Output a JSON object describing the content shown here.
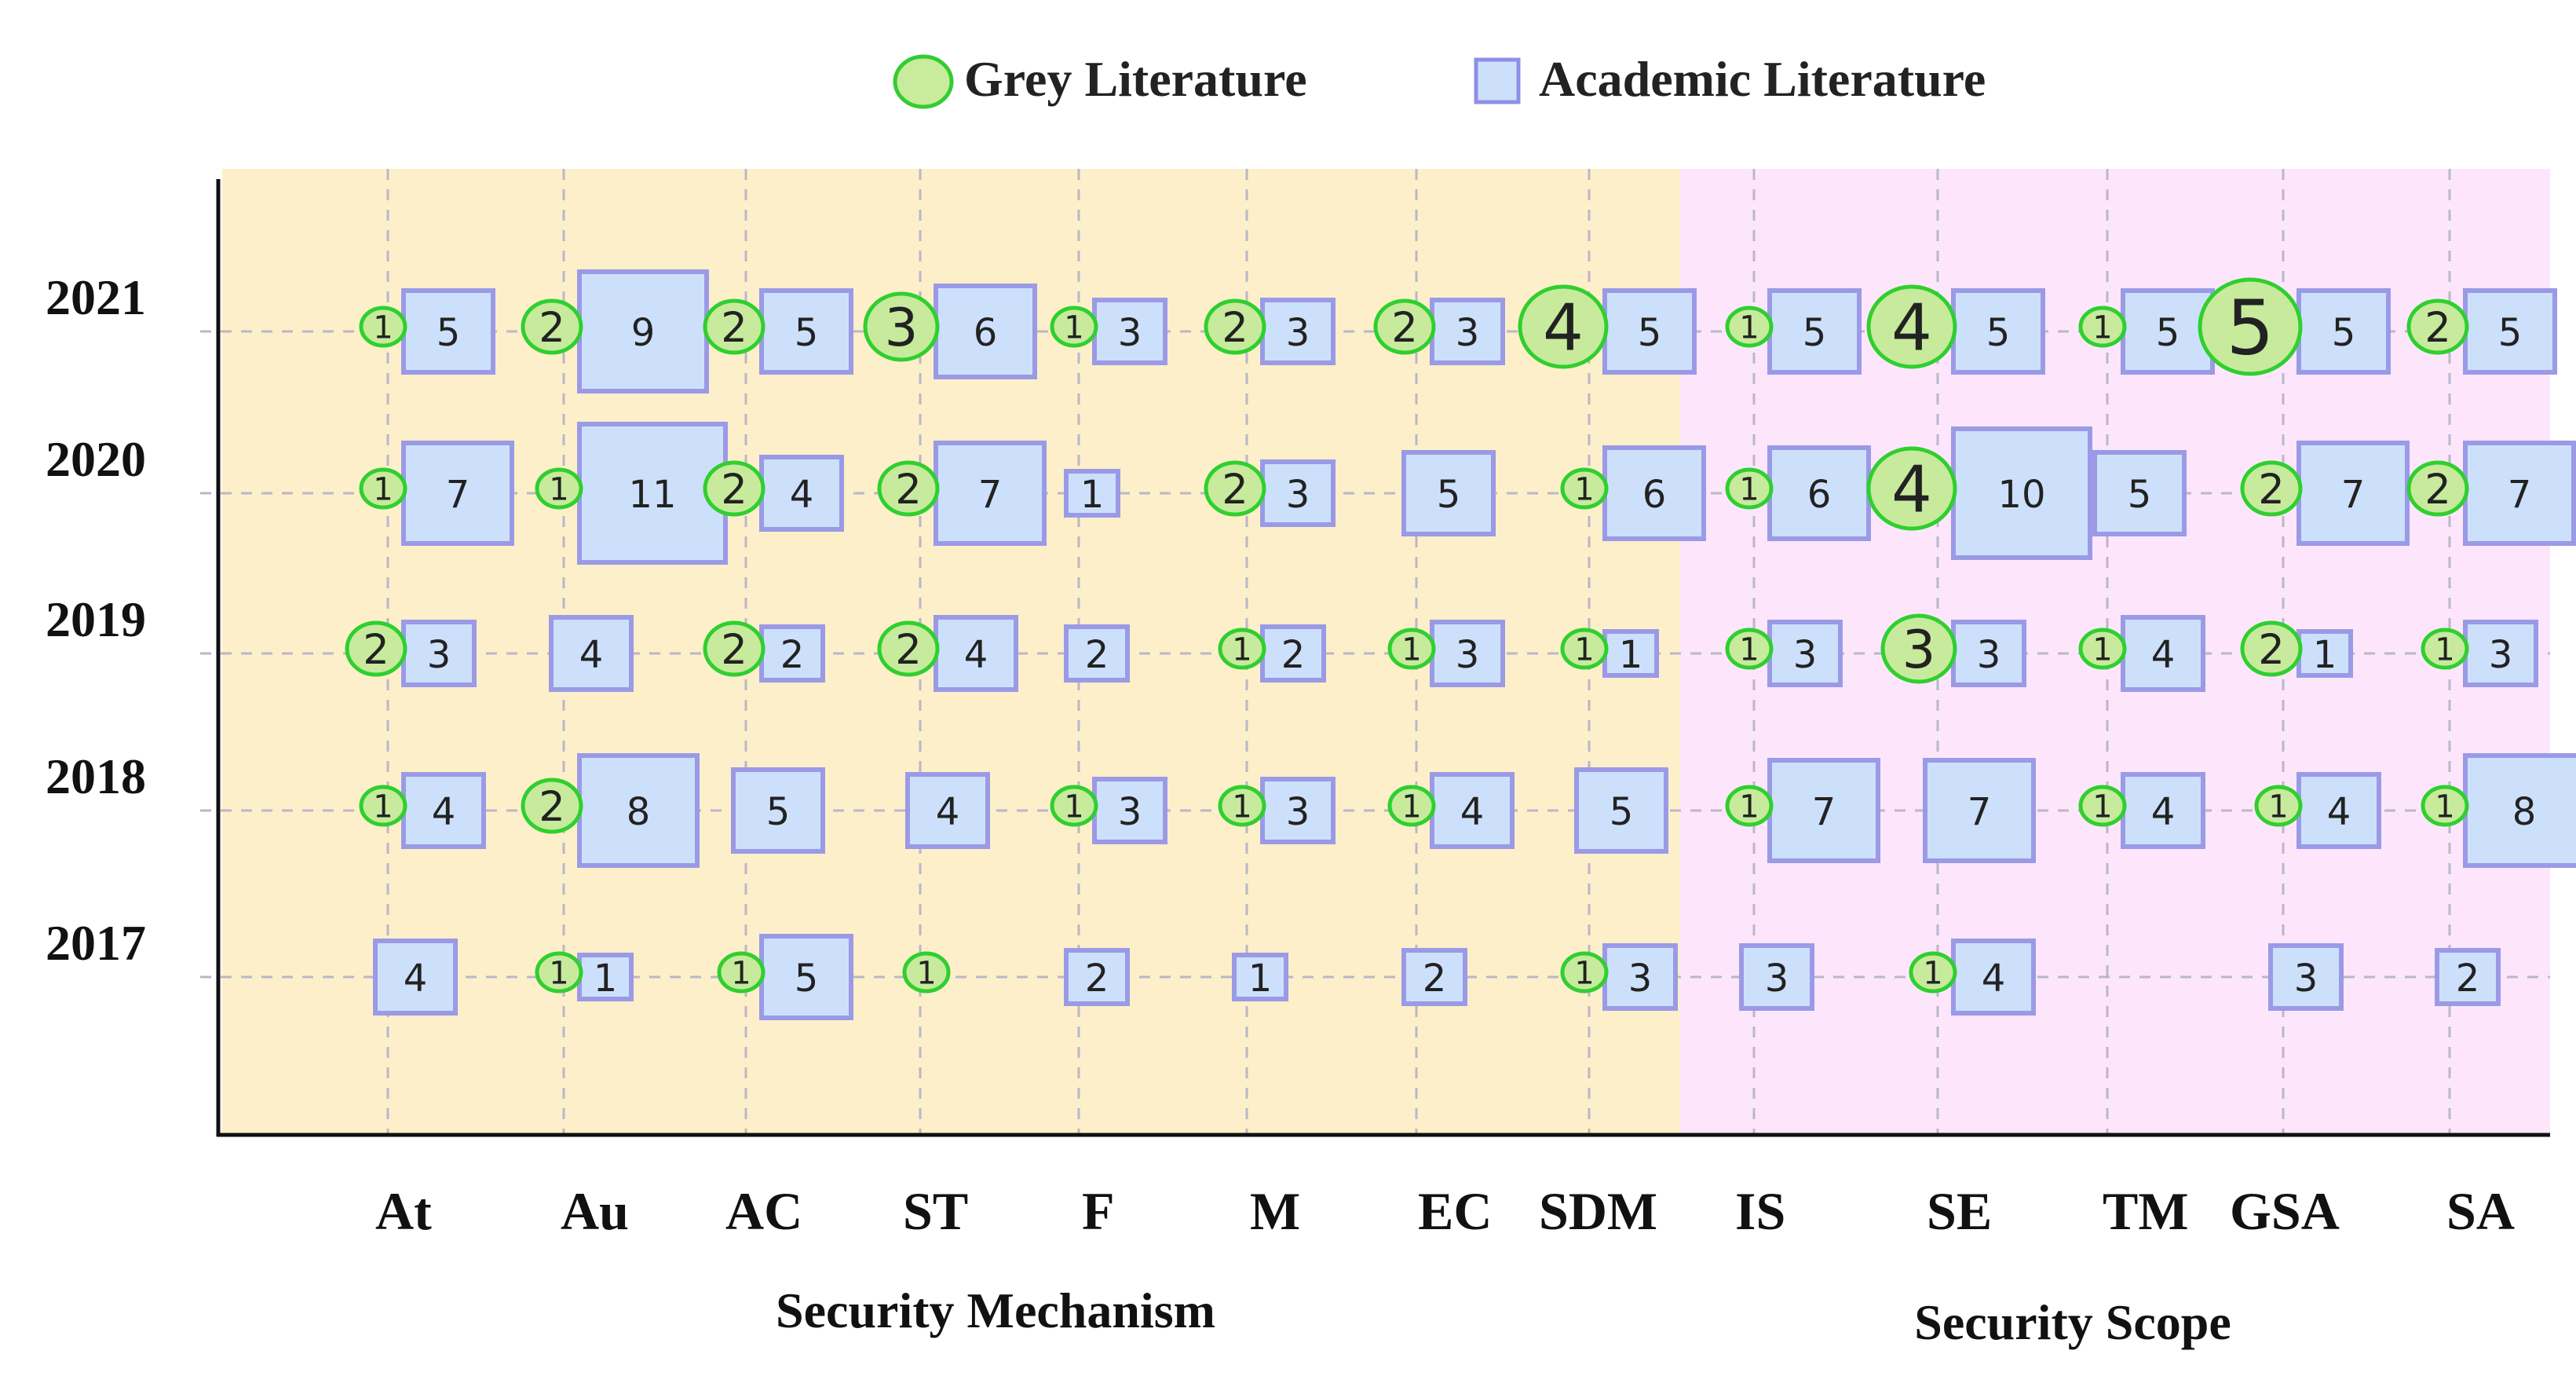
{
  "chart_data": {
    "type": "scatter",
    "title": "",
    "xlabel": "",
    "ylabel": "",
    "categories": [
      "At",
      "Au",
      "AC",
      "ST",
      "F",
      "M",
      "EC",
      "SDM",
      "IS",
      "SE",
      "TM",
      "GSA",
      "SA"
    ],
    "years": [
      "2017",
      "2018",
      "2019",
      "2020",
      "2021"
    ],
    "groups": [
      {
        "label": "Security Mechanism",
        "from": "At",
        "to": "SDM",
        "color": "#fdefc9"
      },
      {
        "label": "Security Scope",
        "from": "IS",
        "to": "SA",
        "color": "#fde6fb"
      }
    ],
    "legend": {
      "position": "top-center",
      "entries": [
        {
          "name": "Grey Literature",
          "shape": "circle",
          "color": "#c8eb9c",
          "stroke": "#33cc33"
        },
        {
          "name": "Academic Literature",
          "shape": "square",
          "color": "#cce0fb",
          "stroke": "#8f8fe8"
        }
      ]
    },
    "grid": true,
    "series": [
      {
        "name": "Grey Literature",
        "values": {
          "2017": [
            0,
            1,
            1,
            1,
            0,
            0,
            0,
            1,
            0,
            1,
            0,
            0,
            0
          ],
          "2018": [
            1,
            2,
            0,
            0,
            1,
            1,
            1,
            0,
            1,
            0,
            1,
            1,
            1
          ],
          "2019": [
            2,
            0,
            2,
            2,
            0,
            1,
            1,
            1,
            1,
            3,
            1,
            2,
            1
          ],
          "2020": [
            1,
            1,
            2,
            2,
            0,
            2,
            0,
            1,
            1,
            4,
            0,
            2,
            2
          ],
          "2021": [
            1,
            2,
            2,
            3,
            1,
            2,
            2,
            4,
            1,
            4,
            1,
            5,
            2
          ]
        }
      },
      {
        "name": "Academic Literature",
        "values": {
          "2017": [
            4,
            1,
            5,
            0,
            2,
            1,
            2,
            3,
            3,
            4,
            0,
            3,
            2
          ],
          "2018": [
            4,
            8,
            5,
            4,
            3,
            3,
            4,
            5,
            7,
            7,
            4,
            4,
            8
          ],
          "2019": [
            3,
            4,
            2,
            4,
            2,
            2,
            3,
            1,
            3,
            3,
            4,
            1,
            3
          ],
          "2020": [
            7,
            11,
            4,
            7,
            1,
            3,
            5,
            6,
            6,
            10,
            5,
            7,
            7
          ],
          "2021": [
            5,
            9,
            5,
            6,
            3,
            3,
            3,
            5,
            5,
            5,
            5,
            5,
            5
          ]
        }
      }
    ]
  }
}
